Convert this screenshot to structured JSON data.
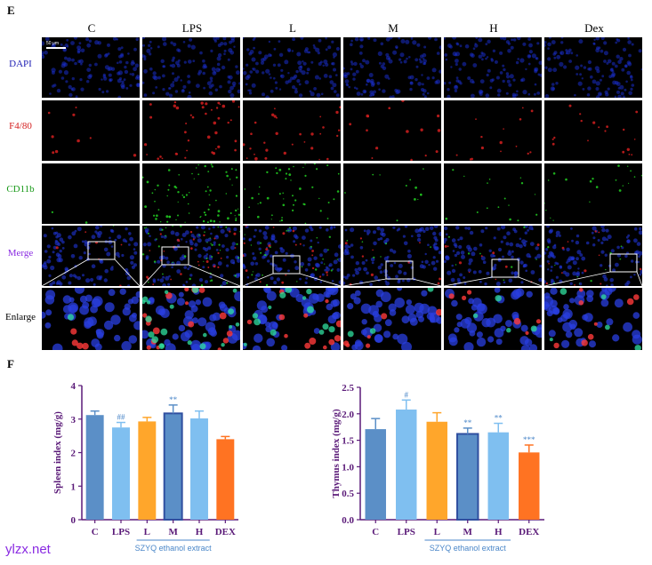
{
  "panels": {
    "e_label": "E",
    "f_label": "F"
  },
  "microscopy": {
    "columns": [
      "C",
      "LPS",
      "L",
      "M",
      "H",
      "Dex"
    ],
    "rows": [
      {
        "label": "DAPI",
        "color": "#1f1fb4"
      },
      {
        "label": "F4/80",
        "color": "#d42020"
      },
      {
        "label": "CD11b",
        "color": "#1a9a1a"
      },
      {
        "label": "Merge",
        "color": "#8a2be2"
      },
      {
        "label": "Enlarge",
        "color": "#000000"
      }
    ],
    "scale_bar": "50 μm"
  },
  "chart_data": [
    {
      "type": "bar",
      "categories": [
        "C",
        "LPS",
        "L",
        "M",
        "H",
        "DEX"
      ],
      "values": [
        3.12,
        2.75,
        2.93,
        3.17,
        3.02,
        2.4
      ],
      "errors": [
        0.12,
        0.15,
        0.12,
        0.25,
        0.22,
        0.08
      ],
      "significance": [
        "",
        "##",
        "",
        "**",
        "",
        ""
      ],
      "colors": [
        "#5b8fc7",
        "#7fbff0",
        "#ffa62b",
        "#5b8fc7",
        "#7fbff0",
        "#ff7322"
      ],
      "ylabel": "Spleen index (mg/g)",
      "ylim": [
        0,
        4
      ],
      "yticks": [
        "0",
        "1",
        "2",
        "3",
        "4"
      ],
      "group_label": "SZYQ ethanol extract"
    },
    {
      "type": "bar",
      "categories": [
        "C",
        "LPS",
        "L",
        "M",
        "H",
        "DEX"
      ],
      "values": [
        1.71,
        2.08,
        1.85,
        1.62,
        1.65,
        1.27
      ],
      "errors": [
        0.2,
        0.18,
        0.17,
        0.11,
        0.17,
        0.14
      ],
      "significance": [
        "",
        "#",
        "",
        "**",
        "**",
        "***"
      ],
      "colors": [
        "#5b8fc7",
        "#7fbff0",
        "#ffa62b",
        "#5b8fc7",
        "#7fbff0",
        "#ff7322"
      ],
      "ylabel": "Thymus index (mg/g)",
      "ylim": [
        0,
        2.5
      ],
      "yticks": [
        "0.0",
        "0.5",
        "1.0",
        "1.5",
        "2.0",
        "2.5"
      ],
      "group_label": "SZYQ ethanol extract"
    }
  ],
  "watermark": "ylzx.net"
}
